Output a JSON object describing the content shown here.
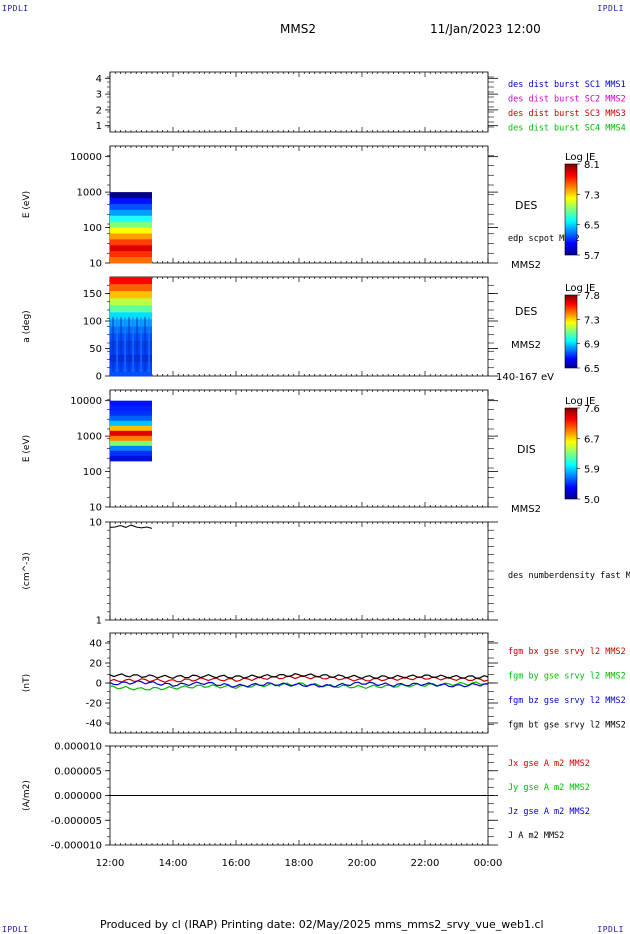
{
  "header": {
    "corner_left": "IPDLI",
    "corner_right": "IPDLI",
    "spacecraft": "MMS2",
    "datetime": "11/Jan/2023 12:00",
    "corner_bottom_left": "IPDLI",
    "corner_bottom_right": "IPDLI"
  },
  "footer": {
    "text": "Produced by cl (IRAP)   Printing date: 02/May/2025   mms_mms2_srvy_vue_web1.cl"
  },
  "chart_data": [
    {
      "type": "table",
      "panel": "spacecraft-availability",
      "yticks": [
        "1",
        "2",
        "3",
        "4"
      ],
      "ylim": [
        0.6,
        4.4
      ],
      "legend": [
        {
          "text": "des dist burst SC1 MMS1",
          "color": "#0000cc"
        },
        {
          "text": "des dist burst SC2 MMS2",
          "color": "#cc00cc"
        },
        {
          "text": "des dist burst SC3 MMS3",
          "color": "#cc0000"
        },
        {
          "text": "des dist burst SC4 MMS4",
          "color": "#00bb00"
        }
      ]
    },
    {
      "type": "heatmap",
      "panel": "des-energy-spectrogram",
      "ylabel": "E (eV)",
      "yscale": "log",
      "ylim": [
        10,
        20000
      ],
      "yticks": [
        "10",
        "100",
        "1000",
        "10000"
      ],
      "x_range": [
        "12:00",
        "13:20"
      ],
      "y_range_ev": [
        10,
        1000
      ],
      "side_labels": [
        "DES",
        "edp scpot MMS2",
        "MMS2"
      ],
      "colorbar": {
        "title": "Log JE",
        "ticks": [
          "8.1",
          "7.3",
          "6.5",
          "5.7"
        ],
        "range": [
          5.7,
          8.1
        ]
      }
    },
    {
      "type": "heatmap",
      "panel": "des-pitch-angle",
      "ylabel": "a (deg)",
      "ylim": [
        0,
        180
      ],
      "yticks": [
        "0",
        "50",
        "100",
        "150"
      ],
      "x_range": [
        "12:00",
        "13:20"
      ],
      "side_labels": [
        "DES",
        "MMS2",
        "140-167 eV"
      ],
      "colorbar": {
        "title": "Log JE",
        "ticks": [
          "7.8",
          "7.3",
          "6.9",
          "6.5"
        ],
        "range": [
          6.5,
          7.8
        ]
      }
    },
    {
      "type": "heatmap",
      "panel": "dis-energy-spectrogram",
      "ylabel": "E (eV)",
      "yscale": "log",
      "ylim": [
        10,
        20000
      ],
      "yticks": [
        "10",
        "100",
        "1000",
        "10000"
      ],
      "x_range": [
        "12:00",
        "13:20"
      ],
      "y_range_ev": [
        200,
        10000
      ],
      "side_labels": [
        "DIS",
        "MMS2"
      ],
      "colorbar": {
        "title": "Log JE",
        "ticks": [
          "7.6",
          "6.7",
          "5.9",
          "5.0"
        ],
        "range": [
          5.0,
          7.6
        ]
      }
    },
    {
      "type": "line",
      "panel": "des-number-density",
      "ylabel": "(cm^-3)",
      "yscale": "log",
      "ylim": [
        1,
        10
      ],
      "yticks": [
        "1",
        "10"
      ],
      "legend": [
        {
          "text": "des numberdensity fast M",
          "color": "#000000"
        }
      ],
      "series": [
        {
          "name": "des numberdensity fast M",
          "color": "#000000",
          "x": [
            "12:00",
            "12:10",
            "12:20",
            "12:30",
            "12:40",
            "12:50",
            "13:00",
            "13:10",
            "13:20"
          ],
          "values": [
            8.8,
            8.9,
            9.2,
            8.8,
            9.3,
            8.9,
            8.7,
            8.9,
            8.6
          ]
        }
      ]
    },
    {
      "type": "line",
      "panel": "fgm-magnetic-field",
      "ylabel": "(nT)",
      "ylim": [
        -50,
        50
      ],
      "yticks": [
        "-40",
        "-20",
        "0",
        "20",
        "40"
      ],
      "legend": [
        {
          "text": "fgm bx gse srvy l2 MMS2",
          "color": "#cc0000"
        },
        {
          "text": "fgm by gse srvy l2 MMS2",
          "color": "#00bb00"
        },
        {
          "text": "fgm bz gse srvy l2 MMS2",
          "color": "#0000cc"
        },
        {
          "text": "fgm bt gse srvy l2 MMS2",
          "color": "#000000"
        }
      ],
      "x": [
        "12:00",
        "13:00",
        "14:00",
        "15:00",
        "16:00",
        "17:00",
        "18:00",
        "19:00",
        "20:00",
        "21:00",
        "22:00",
        "23:00",
        "00:00"
      ],
      "series": [
        {
          "name": "fgm bx gse srvy l2 MMS2",
          "color": "#cc0000",
          "values": [
            2,
            3,
            2,
            4,
            3,
            5,
            6,
            5,
            3,
            4,
            5,
            4,
            3
          ]
        },
        {
          "name": "fgm by gse srvy l2 MMS2",
          "color": "#00bb00",
          "values": [
            -4,
            -6,
            -5,
            -3,
            -4,
            -2,
            -1,
            -3,
            -4,
            -3,
            -2,
            -1,
            0
          ]
        },
        {
          "name": "fgm bz gse srvy l2 MMS2",
          "color": "#0000cc",
          "values": [
            -1,
            1,
            -2,
            0,
            -3,
            -1,
            -2,
            -3,
            0,
            -2,
            -1,
            -3,
            -1
          ]
        },
        {
          "name": "fgm bt gse srvy l2 MMS2",
          "color": "#000000",
          "values": [
            8,
            7,
            6,
            7,
            6,
            7,
            8,
            7,
            6,
            6,
            7,
            6,
            6
          ]
        }
      ]
    },
    {
      "type": "line",
      "panel": "current-density",
      "ylabel": "(A/m2)",
      "ylim": [
        -1e-05,
        1e-05
      ],
      "yticks": [
        "0.000010",
        "0.000005",
        "0.000000",
        "-0.000005",
        "-0.000010"
      ],
      "xticks": [
        "12:00",
        "14:00",
        "16:00",
        "18:00",
        "20:00",
        "22:00",
        "00:00"
      ],
      "legend": [
        {
          "text": "Jx gse A m2 MMS2",
          "color": "#cc0000"
        },
        {
          "text": "Jy gse A m2 MMS2",
          "color": "#00bb00"
        },
        {
          "text": "Jz gse A m2 MMS2",
          "color": "#0000cc"
        },
        {
          "text": "J A m2 MMS2",
          "color": "#000000"
        }
      ],
      "series": [
        {
          "name": "J A m2 MMS2",
          "color": "#000000",
          "x": [
            "12:00",
            "14:00",
            "16:00",
            "18:00",
            "20:00",
            "22:00",
            "00:00"
          ],
          "values": [
            0,
            0,
            0,
            0,
            0,
            0,
            0
          ]
        }
      ]
    }
  ]
}
